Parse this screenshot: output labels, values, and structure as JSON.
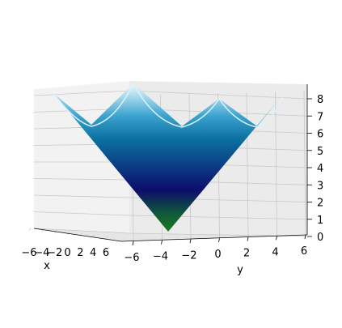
{
  "chart_data": {
    "type": "surface3d",
    "function": "z = |x| + |y| (V-shaped pyramid surface, minimum 0 at origin)",
    "colormap": "ocean_r (green at bottom, navy middle, blue/light cyan/white at top)",
    "x_range": [
      -6,
      6
    ],
    "y_range": [
      -6,
      6
    ],
    "z_range": [
      0,
      8
    ],
    "view": "elevation approx. 0 degrees, looking along the x axis",
    "grid": true,
    "xlabel": "x",
    "ylabel": "y",
    "zlabel": "",
    "x_ticks": [
      "−6",
      "−4",
      "−2",
      "0",
      "2",
      "4",
      "6"
    ],
    "y_ticks": [
      "−6",
      "−4",
      "−2",
      "0",
      "2",
      "4",
      "6"
    ],
    "z_ticks": [
      "0",
      "1",
      "2",
      "3",
      "4",
      "5",
      "6",
      "7",
      "8"
    ],
    "colors": {
      "bottom": "#1a7a1a",
      "low": "#0d0d6b",
      "mid": "#0b5f95",
      "high": "#2a9ccb",
      "top": "#eaf6fb",
      "pane": "#f2f2f2",
      "grid": "#c8c8c8"
    }
  }
}
